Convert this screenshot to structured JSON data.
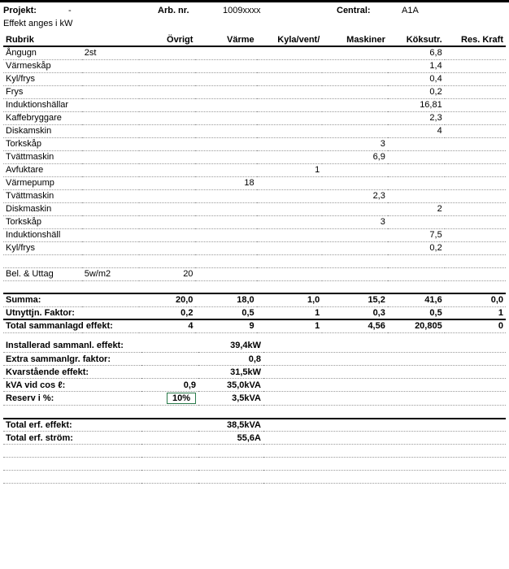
{
  "header": {
    "projekt_lbl": "Projekt:",
    "projekt_val": "-",
    "arbnr_lbl": "Arb. nr.",
    "arbnr_val": "1009xxxx",
    "central_lbl": "Central:",
    "central_val": "A1A",
    "effekt_note": "Effekt anges i kW"
  },
  "cols": {
    "rubrik": "Rubrik",
    "ovrigt": "Övrigt",
    "varme": "Värme",
    "kyla": "Kyla/vent/",
    "maskiner": "Maskiner",
    "koksutr": "Köksutr.",
    "reskraft": "Res. Kraft"
  },
  "rows": [
    {
      "r": "Ångugn",
      "n": "2st",
      "ov": "",
      "va": "",
      "ky": "",
      "ma": "",
      "ko": "6,8",
      "re": ""
    },
    {
      "r": "Värmeskåp",
      "n": "",
      "ov": "",
      "va": "",
      "ky": "",
      "ma": "",
      "ko": "1,4",
      "re": ""
    },
    {
      "r": "Kyl/frys",
      "n": "",
      "ov": "",
      "va": "",
      "ky": "",
      "ma": "",
      "ko": "0,4",
      "re": ""
    },
    {
      "r": "Frys",
      "n": "",
      "ov": "",
      "va": "",
      "ky": "",
      "ma": "",
      "ko": "0,2",
      "re": ""
    },
    {
      "r": "Induktionshällar",
      "n": "",
      "ov": "",
      "va": "",
      "ky": "",
      "ma": "",
      "ko": "16,81",
      "re": ""
    },
    {
      "r": "Kaffebryggare",
      "n": "",
      "ov": "",
      "va": "",
      "ky": "",
      "ma": "",
      "ko": "2,3",
      "re": ""
    },
    {
      "r": "Diskamskin",
      "n": "",
      "ov": "",
      "va": "",
      "ky": "",
      "ma": "",
      "ko": "4",
      "re": ""
    },
    {
      "r": "Torkskåp",
      "n": "",
      "ov": "",
      "va": "",
      "ky": "",
      "ma": "3",
      "ko": "",
      "re": ""
    },
    {
      "r": "Tvättmaskin",
      "n": "",
      "ov": "",
      "va": "",
      "ky": "",
      "ma": "6,9",
      "ko": "",
      "re": ""
    },
    {
      "r": "Avfuktare",
      "n": "",
      "ov": "",
      "va": "",
      "ky": "1",
      "ma": "",
      "ko": "",
      "re": ""
    },
    {
      "r": "Värmepump",
      "n": "",
      "ov": "",
      "va": "18",
      "ky": "",
      "ma": "",
      "ko": "",
      "re": ""
    },
    {
      "r": "Tvättmaskin",
      "n": "",
      "ov": "",
      "va": "",
      "ky": "",
      "ma": "2,3",
      "ko": "",
      "re": ""
    },
    {
      "r": "Diskmaskin",
      "n": "",
      "ov": "",
      "va": "",
      "ky": "",
      "ma": "",
      "ko": "2",
      "re": ""
    },
    {
      "r": "Torkskåp",
      "n": "",
      "ov": "",
      "va": "",
      "ky": "",
      "ma": "3",
      "ko": "",
      "re": ""
    },
    {
      "r": "Induktionshäll",
      "n": "",
      "ov": "",
      "va": "",
      "ky": "",
      "ma": "",
      "ko": "7,5",
      "re": ""
    },
    {
      "r": "Kyl/frys",
      "n": "",
      "ov": "",
      "va": "",
      "ky": "",
      "ma": "",
      "ko": "0,2",
      "re": ""
    },
    {
      "r": "",
      "n": "",
      "ov": "",
      "va": "",
      "ky": "",
      "ma": "",
      "ko": "",
      "re": ""
    },
    {
      "r": "Bel. & Uttag",
      "n": "5w/m2",
      "ov": "20",
      "va": "",
      "ky": "",
      "ma": "",
      "ko": "",
      "re": ""
    },
    {
      "r": "",
      "n": "",
      "ov": "",
      "va": "",
      "ky": "",
      "ma": "",
      "ko": "",
      "re": ""
    }
  ],
  "sum": {
    "summa_lbl": "Summa:",
    "summa": [
      "20,0",
      "18,0",
      "1,0",
      "15,2",
      "41,6",
      "0,0"
    ],
    "utn_lbl": "Utnyttjn. Faktor:",
    "utn": [
      "0,2",
      "0,5",
      "1",
      "0,3",
      "0,5",
      "1"
    ],
    "tot_lbl": "Total sammanlagd effekt:",
    "tot": [
      "4",
      "9",
      "1",
      "4,56",
      "20,805",
      "0"
    ]
  },
  "calc": {
    "inst_lbl": "Installerad sammanl. effekt:",
    "inst_v": "",
    "inst_u": "39,4kW",
    "extra_lbl": "Extra sammanlgr. faktor:",
    "extra_v": "",
    "extra_u": "0,8",
    "kvar_lbl": "Kvarstående effekt:",
    "kvar_v": "",
    "kvar_u": "31,5kW",
    "kva_lbl": "kVA vid cos ℓ:",
    "kva_v": "0,9",
    "kva_u": "35,0kVA",
    "res_lbl": "Reserv i %:",
    "res_v": "10%",
    "res_u": "3,5kVA",
    "toteff_lbl": "Total erf. effekt:",
    "toteff_u": "38,5kVA",
    "totstr_lbl": "Total erf. ström:",
    "totstr_u": "55,6A"
  }
}
